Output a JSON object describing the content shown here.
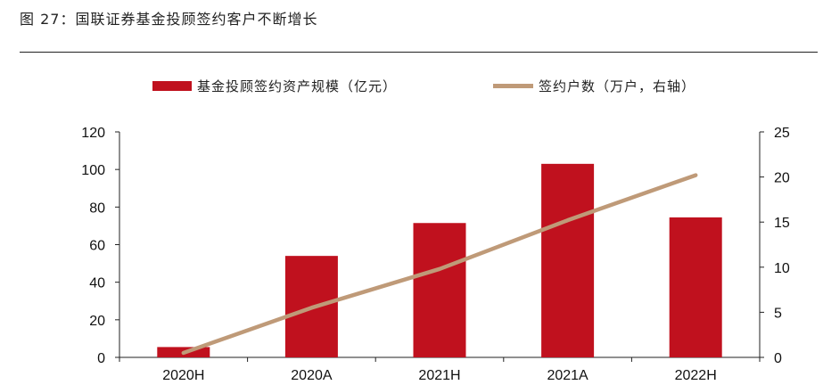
{
  "figure": {
    "title": "图 27：国联证券基金投顾签约客户不断增长"
  },
  "colors": {
    "bar": "#c0111e",
    "line": "#bf9a78",
    "axis": "#222222"
  },
  "chart_data": {
    "type": "bar",
    "categories": [
      "2020H",
      "2020A",
      "2021H",
      "2021A",
      "2022H"
    ],
    "series": [
      {
        "name": "基金投顾签约资产规模（亿元）",
        "kind": "bar",
        "axis": "left",
        "values": [
          5.5,
          54,
          71.5,
          103,
          74.5
        ]
      },
      {
        "name": "签约户数（万户，右轴）",
        "kind": "line",
        "axis": "right",
        "values": [
          0.5,
          5.5,
          9.8,
          15.2,
          20.2
        ]
      }
    ],
    "y_left": {
      "min": 0,
      "max": 120,
      "ticks": [
        "0",
        "20",
        "40",
        "60",
        "80",
        "100",
        "120"
      ]
    },
    "y_right": {
      "min": 0,
      "max": 25,
      "ticks": [
        "0",
        "5",
        "10",
        "15",
        "20",
        "25"
      ]
    },
    "grid": false,
    "legend": "top"
  }
}
